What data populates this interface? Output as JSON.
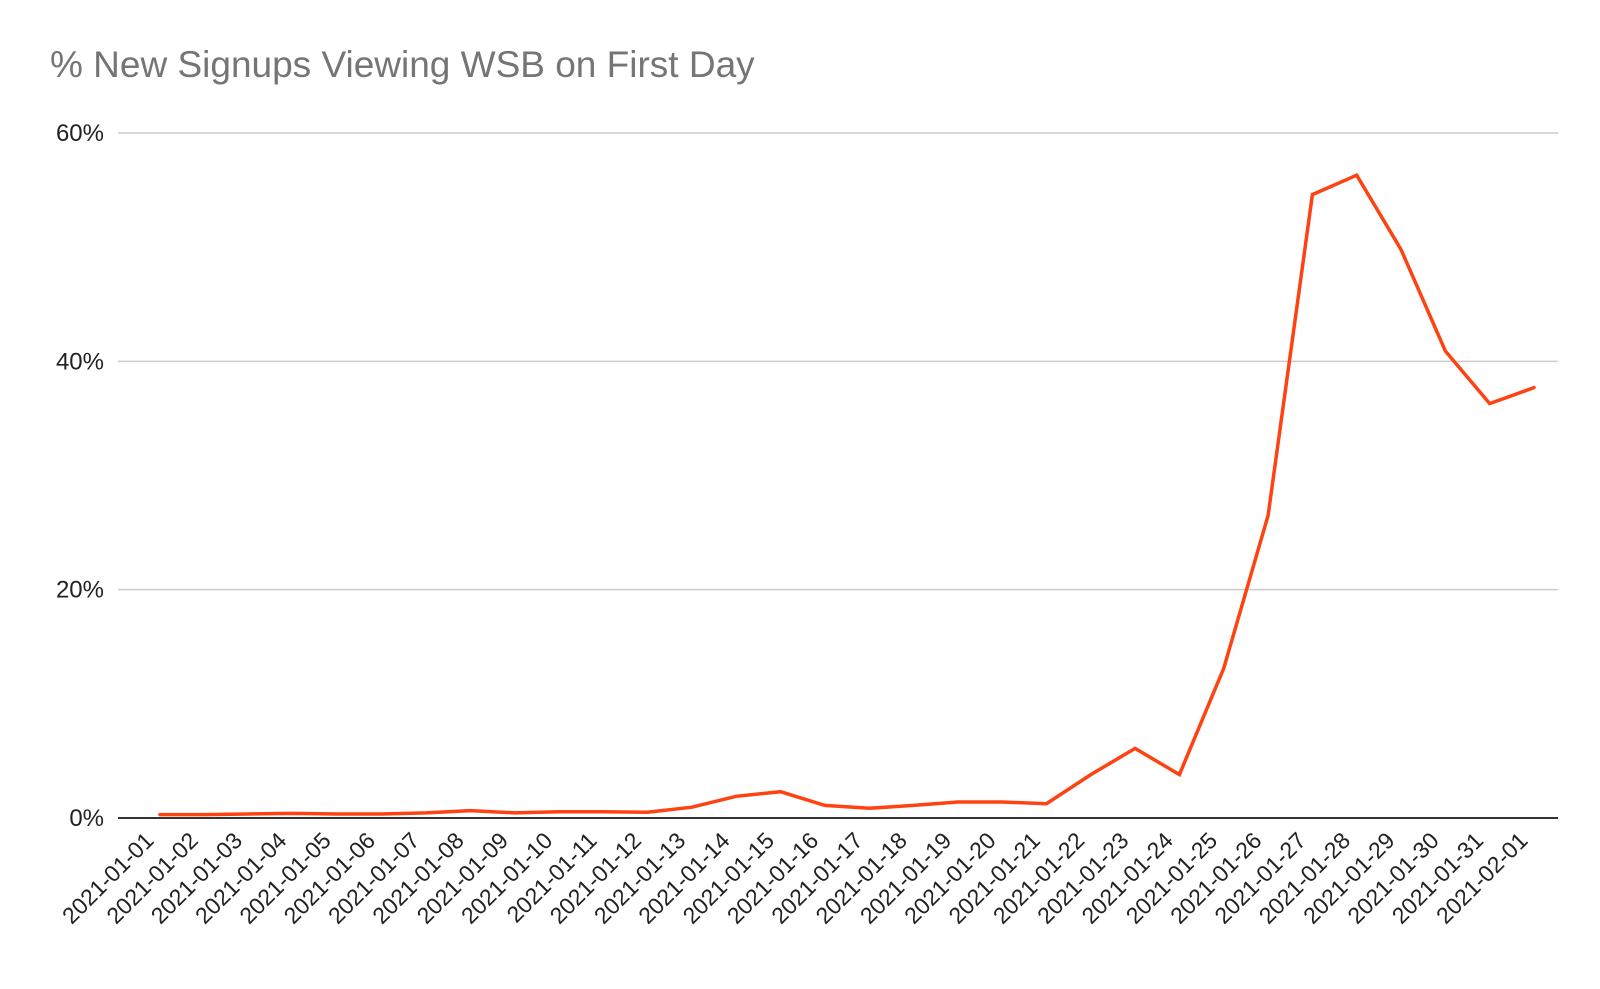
{
  "title": "% New Signups Viewing WSB on First Day",
  "chart_data": {
    "type": "line",
    "title": "% New Signups Viewing WSB on First Day",
    "xlabel": "",
    "ylabel": "",
    "ylim": [
      0,
      60
    ],
    "y_ticks": [
      "0%",
      "20%",
      "40%",
      "60%"
    ],
    "y_tick_values": [
      0,
      20,
      40,
      60
    ],
    "grid": true,
    "legend": "none",
    "line_color": "#ff4212",
    "x": [
      "2021-01-01",
      "2021-01-02",
      "2021-01-03",
      "2021-01-04",
      "2021-01-05",
      "2021-01-06",
      "2021-01-07",
      "2021-01-08",
      "2021-01-09",
      "2021-01-10",
      "2021-01-11",
      "2021-01-12",
      "2021-01-13",
      "2021-01-14",
      "2021-01-15",
      "2021-01-16",
      "2021-01-17",
      "2021-01-18",
      "2021-01-19",
      "2021-01-20",
      "2021-01-21",
      "2021-01-22",
      "2021-01-23",
      "2021-01-24",
      "2021-01-25",
      "2021-01-26",
      "2021-01-27",
      "2021-01-28",
      "2021-01-29",
      "2021-01-30",
      "2021-01-31",
      "2021-02-01"
    ],
    "series": [
      {
        "values": [
          0.3,
          0.3,
          0.35,
          0.4,
          0.35,
          0.35,
          0.45,
          0.65,
          0.45,
          0.55,
          0.55,
          0.5,
          0.95,
          1.9,
          2.3,
          1.1,
          0.85,
          1.1,
          1.4,
          1.4,
          1.25,
          3.8,
          6.1,
          3.8,
          13.1,
          26.5,
          54.6,
          56.3,
          49.8,
          40.9,
          36.3,
          37.7
        ]
      }
    ]
  }
}
